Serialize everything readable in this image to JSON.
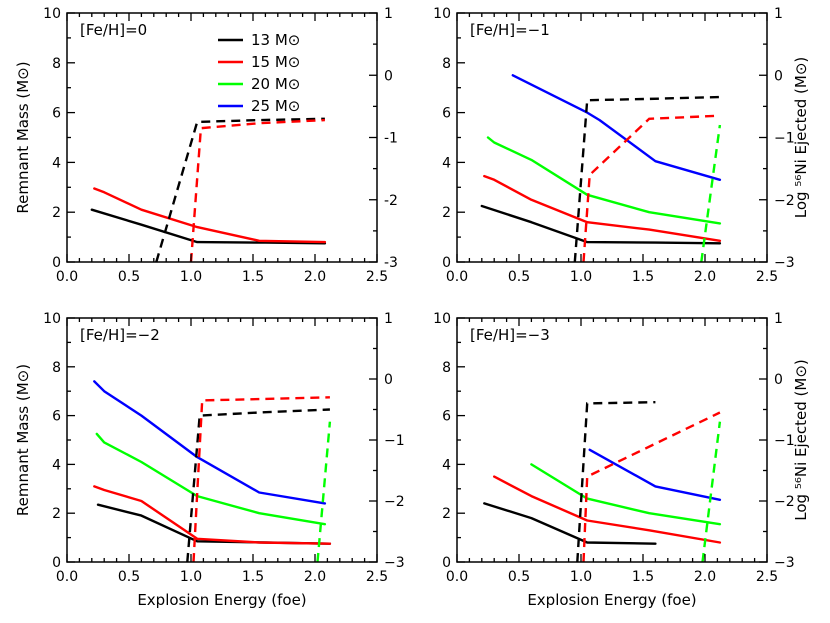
{
  "colors": {
    "13": "#000000",
    "15": "#ff0000",
    "20": "#00ff00",
    "25": "#0000ff"
  },
  "chart_data": [
    {
      "type": "line",
      "title": "[Fe/H]=0",
      "xlabel": "",
      "ylabel": "Remnant Mass (M⊙)",
      "y2label": "",
      "xlim": [
        0.0,
        2.5
      ],
      "ylim": [
        0,
        10
      ],
      "y2lim": [
        -3,
        1
      ],
      "xticks": [
        "0.0",
        "0.5",
        "1.0",
        "1.5",
        "2.0",
        "2.5"
      ],
      "yticks": [
        "0",
        "2",
        "4",
        "6",
        "8",
        "10"
      ],
      "y2ticks": [
        "-3",
        "-2",
        "-1",
        "0",
        "1"
      ],
      "legend": [
        {
          "name": "13",
          "label": "13 M⊙"
        },
        {
          "name": "15",
          "label": "15 M⊙"
        },
        {
          "name": "20",
          "label": "20 M⊙"
        },
        {
          "name": "25",
          "label": "25 M⊙"
        }
      ],
      "series": [
        {
          "name": "13",
          "kind": "remnant",
          "x": [
            0.2,
            0.6,
            1.05,
            1.6,
            2.08
          ],
          "y": [
            2.1,
            1.5,
            0.8,
            0.78,
            0.75
          ]
        },
        {
          "name": "15",
          "kind": "remnant",
          "x": [
            0.22,
            0.3,
            0.6,
            1.05,
            1.55,
            2.08
          ],
          "y": [
            2.95,
            2.8,
            2.1,
            1.4,
            0.85,
            0.8
          ]
        },
        {
          "name": "13",
          "kind": "nickel",
          "x": [
            0.72,
            1.05,
            1.55,
            2.08
          ],
          "y": [
            -3.0,
            -0.75,
            -0.72,
            -0.7
          ]
        },
        {
          "name": "15",
          "kind": "nickel",
          "x": [
            1.0,
            1.08,
            1.55,
            2.08
          ],
          "y": [
            -3.0,
            -0.85,
            -0.77,
            -0.72
          ]
        }
      ]
    },
    {
      "type": "line",
      "title": "[Fe/H]=−1",
      "xlabel": "",
      "ylabel": "",
      "y2label": "Log ⁵⁶Ni Ejected (M⊙)",
      "xlim": [
        0.0,
        2.5
      ],
      "ylim": [
        0,
        10
      ],
      "y2lim": [
        -3,
        1
      ],
      "xticks": [
        "0.0",
        "0.5",
        "1.0",
        "1.5",
        "2.0",
        "2.5"
      ],
      "yticks": [
        "0",
        "2",
        "4",
        "6",
        "8",
        "10"
      ],
      "y2ticks": [
        "−3",
        "−2",
        "−1",
        "0",
        "1"
      ],
      "legend": [],
      "series": [
        {
          "name": "13",
          "kind": "remnant",
          "x": [
            0.2,
            0.6,
            1.05,
            1.6,
            2.12
          ],
          "y": [
            2.25,
            1.6,
            0.8,
            0.78,
            0.75
          ]
        },
        {
          "name": "15",
          "kind": "remnant",
          "x": [
            0.22,
            0.3,
            0.6,
            1.05,
            1.55,
            2.12
          ],
          "y": [
            3.45,
            3.3,
            2.5,
            1.6,
            1.3,
            0.85
          ]
        },
        {
          "name": "20",
          "kind": "remnant",
          "x": [
            0.25,
            0.3,
            0.6,
            1.05,
            1.55,
            2.12
          ],
          "y": [
            5.0,
            4.8,
            4.1,
            2.7,
            2.0,
            1.55
          ]
        },
        {
          "name": "25",
          "kind": "remnant",
          "x": [
            0.45,
            1.05,
            1.15,
            1.6,
            2.12
          ],
          "y": [
            7.5,
            6.0,
            5.7,
            4.05,
            3.3
          ]
        },
        {
          "name": "13",
          "kind": "nickel",
          "x": [
            0.95,
            1.05,
            1.55,
            2.12
          ],
          "y": [
            -3.0,
            -0.4,
            -0.38,
            -0.35
          ]
        },
        {
          "name": "15",
          "kind": "nickel",
          "x": [
            1.02,
            1.07,
            1.55,
            2.12
          ],
          "y": [
            -3.0,
            -1.6,
            -0.7,
            -0.65
          ]
        },
        {
          "name": "20",
          "kind": "nickel",
          "x": [
            1.97,
            2.12
          ],
          "y": [
            -3.0,
            -0.8
          ]
        }
      ]
    },
    {
      "type": "line",
      "title": "[Fe/H]=−2",
      "xlabel": "Explosion Energy (foe)",
      "ylabel": "Remnant Mass (M⊙)",
      "y2label": "",
      "xlim": [
        0.0,
        2.5
      ],
      "ylim": [
        0,
        10
      ],
      "y2lim": [
        -3,
        1
      ],
      "xticks": [
        "0.0",
        "0.5",
        "1.0",
        "1.5",
        "2.0",
        "2.5"
      ],
      "yticks": [
        "0",
        "2",
        "4",
        "6",
        "8",
        "10"
      ],
      "y2ticks": [
        "−3",
        "−2",
        "−1",
        "0",
        "1"
      ],
      "legend": [],
      "series": [
        {
          "name": "13",
          "kind": "remnant",
          "x": [
            0.25,
            0.6,
            1.05,
            1.6,
            2.12
          ],
          "y": [
            2.35,
            1.9,
            0.85,
            0.8,
            0.75
          ]
        },
        {
          "name": "15",
          "kind": "remnant",
          "x": [
            0.22,
            0.3,
            0.6,
            1.05,
            1.55,
            2.12
          ],
          "y": [
            3.1,
            2.95,
            2.5,
            0.95,
            0.8,
            0.75
          ]
        },
        {
          "name": "20",
          "kind": "remnant",
          "x": [
            0.24,
            0.3,
            0.6,
            1.05,
            1.55,
            2.08
          ],
          "y": [
            5.25,
            4.9,
            4.1,
            2.7,
            2.0,
            1.55
          ]
        },
        {
          "name": "25",
          "kind": "remnant",
          "x": [
            0.22,
            0.3,
            0.6,
            1.05,
            1.55,
            2.08
          ],
          "y": [
            7.4,
            7.0,
            6.0,
            4.3,
            2.85,
            2.4
          ]
        },
        {
          "name": "13",
          "kind": "nickel",
          "x": [
            0.97,
            1.07,
            1.55,
            2.12
          ],
          "y": [
            -3.0,
            -0.6,
            -0.55,
            -0.5
          ]
        },
        {
          "name": "15",
          "kind": "nickel",
          "x": [
            1.02,
            1.09,
            1.55,
            2.12
          ],
          "y": [
            -3.0,
            -0.35,
            -0.33,
            -0.3
          ]
        },
        {
          "name": "20",
          "kind": "nickel",
          "x": [
            2.02,
            2.12
          ],
          "y": [
            -3.0,
            -0.7
          ]
        }
      ]
    },
    {
      "type": "line",
      "title": "[Fe/H]=−3",
      "xlabel": "Explosion Energy (foe)",
      "ylabel": "",
      "y2label": "Log ⁵⁶Ni Ejected (M⊙)",
      "xlim": [
        0.0,
        2.5
      ],
      "ylim": [
        0,
        10
      ],
      "y2lim": [
        -3,
        1
      ],
      "xticks": [
        "0.0",
        "0.5",
        "1.0",
        "1.5",
        "2.0",
        "2.5"
      ],
      "yticks": [
        "0",
        "2",
        "4",
        "6",
        "8",
        "10"
      ],
      "y2ticks": [
        "−3",
        "−2",
        "−1",
        "0",
        "1"
      ],
      "legend": [],
      "series": [
        {
          "name": "13",
          "kind": "remnant",
          "x": [
            0.22,
            0.6,
            1.05,
            1.6
          ],
          "y": [
            2.4,
            1.8,
            0.8,
            0.75
          ]
        },
        {
          "name": "15",
          "kind": "remnant",
          "x": [
            0.3,
            0.6,
            1.05,
            1.55,
            2.12
          ],
          "y": [
            3.5,
            2.7,
            1.7,
            1.3,
            0.8
          ]
        },
        {
          "name": "20",
          "kind": "remnant",
          "x": [
            0.6,
            1.05,
            1.55,
            2.12
          ],
          "y": [
            4.0,
            2.6,
            2.0,
            1.55
          ]
        },
        {
          "name": "25",
          "kind": "remnant",
          "x": [
            1.07,
            1.6,
            2.12
          ],
          "y": [
            4.6,
            3.1,
            2.55
          ]
        },
        {
          "name": "13",
          "kind": "nickel",
          "x": [
            0.97,
            1.05,
            1.6
          ],
          "y": [
            -3.0,
            -0.4,
            -0.38
          ]
        },
        {
          "name": "15",
          "kind": "nickel",
          "x": [
            1.02,
            1.05,
            2.12
          ],
          "y": [
            -3.0,
            -1.6,
            -0.55
          ]
        },
        {
          "name": "20",
          "kind": "nickel",
          "x": [
            1.98,
            2.12
          ],
          "y": [
            -3.0,
            -0.7
          ]
        }
      ]
    }
  ]
}
